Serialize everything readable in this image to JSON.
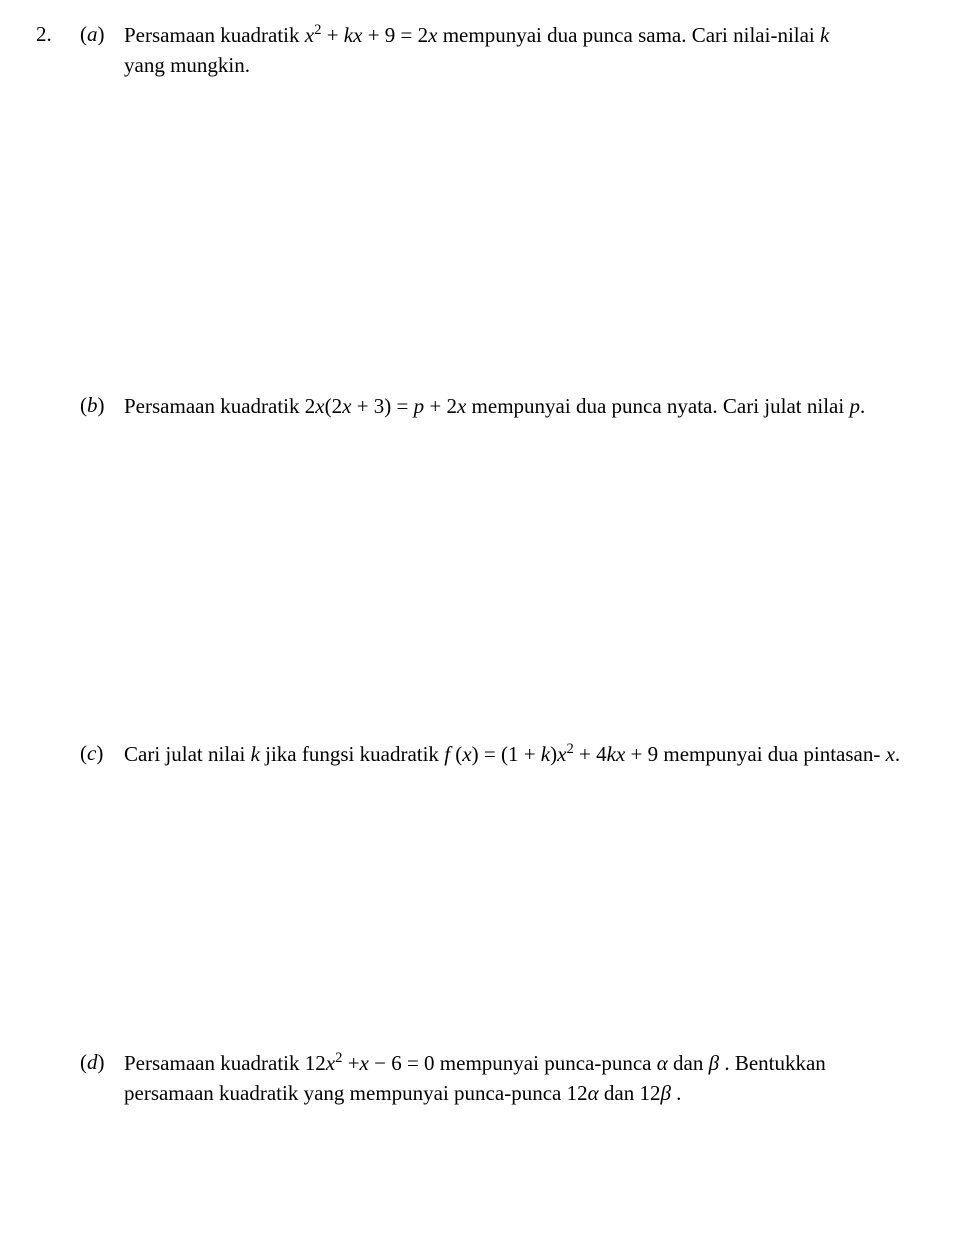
{
  "question_number": "2.",
  "parts": {
    "a": {
      "label": "(a)",
      "line1_pre": "Persamaan kuadratik ",
      "eq1_x2": "x",
      "eq1_plus1": " + ",
      "eq1_kx": "kx",
      "eq1_plus2": " + 9 = 2",
      "eq1_xr": "x",
      "line1_post": " mempunyai dua punca sama. Cari nilai-nilai ",
      "var_k": "k",
      "line2": "yang  mungkin."
    },
    "b": {
      "label": "(b)",
      "pre": "Persamaan kuadratik  2",
      "x1": "x",
      "mid1": "(2",
      "x2": "x",
      "mid2": " + 3) = ",
      "p": "p",
      "mid3": " + 2",
      "x3": "x",
      "post": "  mempunyai dua punca nyata. Cari julat nilai ",
      "pend": "p",
      "dot": "."
    },
    "c": {
      "label": "(c)",
      "pre": "Cari julat nilai ",
      "k1": "k",
      "mid1": " jika fungsi kuadratik ",
      "f": "f ",
      "paren_open": "(",
      "x1": "x",
      "paren_close": ") = (1 + ",
      "k2": "k",
      "after_k2": ")",
      "x2": "x",
      "plus4k": " + 4",
      "k3": "kx",
      "tail": " + 9 mempunyai dua pintasan- ",
      "xend": "x",
      "dot": "."
    },
    "d": {
      "label": "(d)",
      "pre": "Persamaan kuadratik  12",
      "x1": "x",
      "mid1": " +",
      "x2": "x",
      "mid2": "  − 6 = 0  mempunyai punca-punca  ",
      "alpha": "α",
      "and": "  dan ",
      "beta": "β",
      "post1": " . Bentukkan",
      "line2_pre": "persamaan kuadratik yang mempunyai punca-punca 12",
      "alpha2": "α",
      "and2": "  dan 12",
      "beta2": "β",
      "dot": " ."
    }
  }
}
